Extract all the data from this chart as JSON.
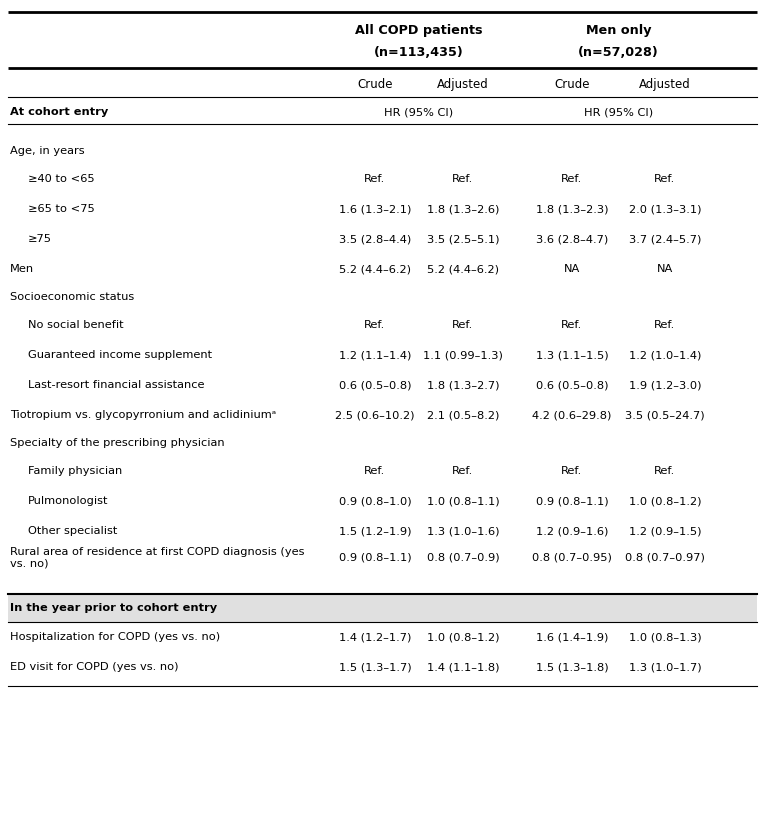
{
  "col_header_1": "All COPD patients",
  "col_header_1b": "(n=113,435)",
  "col_header_2": "Men only",
  "col_header_2b": "(n=57,028)",
  "sub_headers": [
    "Crude",
    "Adjusted",
    "Crude",
    "Adjusted"
  ],
  "section_cohort": "At cohort entry",
  "hr_label": "HR (95% CI)",
  "rows": [
    {
      "label": "Age, in years",
      "type": "section",
      "indent": 0,
      "c1": "",
      "c2": "",
      "c3": "",
      "c4": ""
    },
    {
      "label": "≥40 to <65",
      "type": "data",
      "indent": 1,
      "c1": "Ref.",
      "c2": "Ref.",
      "c3": "Ref.",
      "c4": "Ref."
    },
    {
      "label": "≥65 to <75",
      "type": "data",
      "indent": 1,
      "c1": "1.6 (1.3–2.1)",
      "c2": "1.8 (1.3–2.6)",
      "c3": "1.8 (1.3–2.3)",
      "c4": "2.0 (1.3–3.1)"
    },
    {
      "label": "≥75",
      "type": "data",
      "indent": 1,
      "c1": "3.5 (2.8–4.4)",
      "c2": "3.5 (2.5–5.1)",
      "c3": "3.6 (2.8–4.7)",
      "c4": "3.7 (2.4–5.7)"
    },
    {
      "label": "Men",
      "type": "data",
      "indent": 0,
      "c1": "5.2 (4.4–6.2)",
      "c2": "5.2 (4.4–6.2)",
      "c3": "NA",
      "c4": "NA"
    },
    {
      "label": "Socioeconomic status",
      "type": "section",
      "indent": 0,
      "c1": "",
      "c2": "",
      "c3": "",
      "c4": ""
    },
    {
      "label": "No social benefit",
      "type": "data",
      "indent": 1,
      "c1": "Ref.",
      "c2": "Ref.",
      "c3": "Ref.",
      "c4": "Ref."
    },
    {
      "label": "Guaranteed income supplement",
      "type": "data",
      "indent": 1,
      "c1": "1.2 (1.1–1.4)",
      "c2": "1.1 (0.99–1.3)",
      "c3": "1.3 (1.1–1.5)",
      "c4": "1.2 (1.0–1.4)"
    },
    {
      "label": "Last-resort financial assistance",
      "type": "data",
      "indent": 1,
      "c1": "0.6 (0.5–0.8)",
      "c2": "1.8 (1.3–2.7)",
      "c3": "0.6 (0.5–0.8)",
      "c4": "1.9 (1.2–3.0)"
    },
    {
      "label": "Tiotropium vs. glycopyrronium and aclidiniumᵃ",
      "type": "data",
      "indent": 0,
      "c1": "2.5 (0.6–10.2)",
      "c2": "2.1 (0.5–8.2)",
      "c3": "4.2 (0.6–29.8)",
      "c4": "3.5 (0.5–24.7)"
    },
    {
      "label": "Specialty of the prescribing physician",
      "type": "section",
      "indent": 0,
      "c1": "",
      "c2": "",
      "c3": "",
      "c4": ""
    },
    {
      "label": "Family physician",
      "type": "data",
      "indent": 1,
      "c1": "Ref.",
      "c2": "Ref.",
      "c3": "Ref.",
      "c4": "Ref."
    },
    {
      "label": "Pulmonologist",
      "type": "data",
      "indent": 1,
      "c1": "0.9 (0.8–1.0)",
      "c2": "1.0 (0.8–1.1)",
      "c3": "0.9 (0.8–1.1)",
      "c4": "1.0 (0.8–1.2)"
    },
    {
      "label": "Other specialist",
      "type": "data",
      "indent": 1,
      "c1": "1.5 (1.2–1.9)",
      "c2": "1.3 (1.0–1.6)",
      "c3": "1.2 (0.9–1.6)",
      "c4": "1.2 (0.9–1.5)"
    },
    {
      "label": "Rural area of residence at first COPD diagnosis (yes\nvs. no)",
      "type": "data_multiline",
      "indent": 0,
      "c1": "0.9 (0.8–1.1)",
      "c2": "0.8 (0.7–0.9)",
      "c3": "0.8 (0.7–0.95)",
      "c4": "0.8 (0.7–0.97)"
    },
    {
      "label": "In the year prior to cohort entry",
      "type": "bold_section",
      "indent": 0,
      "c1": "",
      "c2": "",
      "c3": "",
      "c4": ""
    },
    {
      "label": "Hospitalization for COPD (yes vs. no)",
      "type": "data",
      "indent": 0,
      "c1": "1.4 (1.2–1.7)",
      "c2": "1.0 (0.8–1.2)",
      "c3": "1.6 (1.4–1.9)",
      "c4": "1.0 (0.8–1.3)"
    },
    {
      "label": "ED visit for COPD (yes vs. no)",
      "type": "data",
      "indent": 0,
      "c1": "1.5 (1.3–1.7)",
      "c2": "1.4 (1.1–1.8)",
      "c3": "1.5 (1.3–1.8)",
      "c4": "1.3 (1.0–1.7)"
    }
  ],
  "bg_color": "#ffffff",
  "text_color": "#000000",
  "font_size": 8.2,
  "header_font_size": 9.2,
  "subheader_font_size": 8.5
}
